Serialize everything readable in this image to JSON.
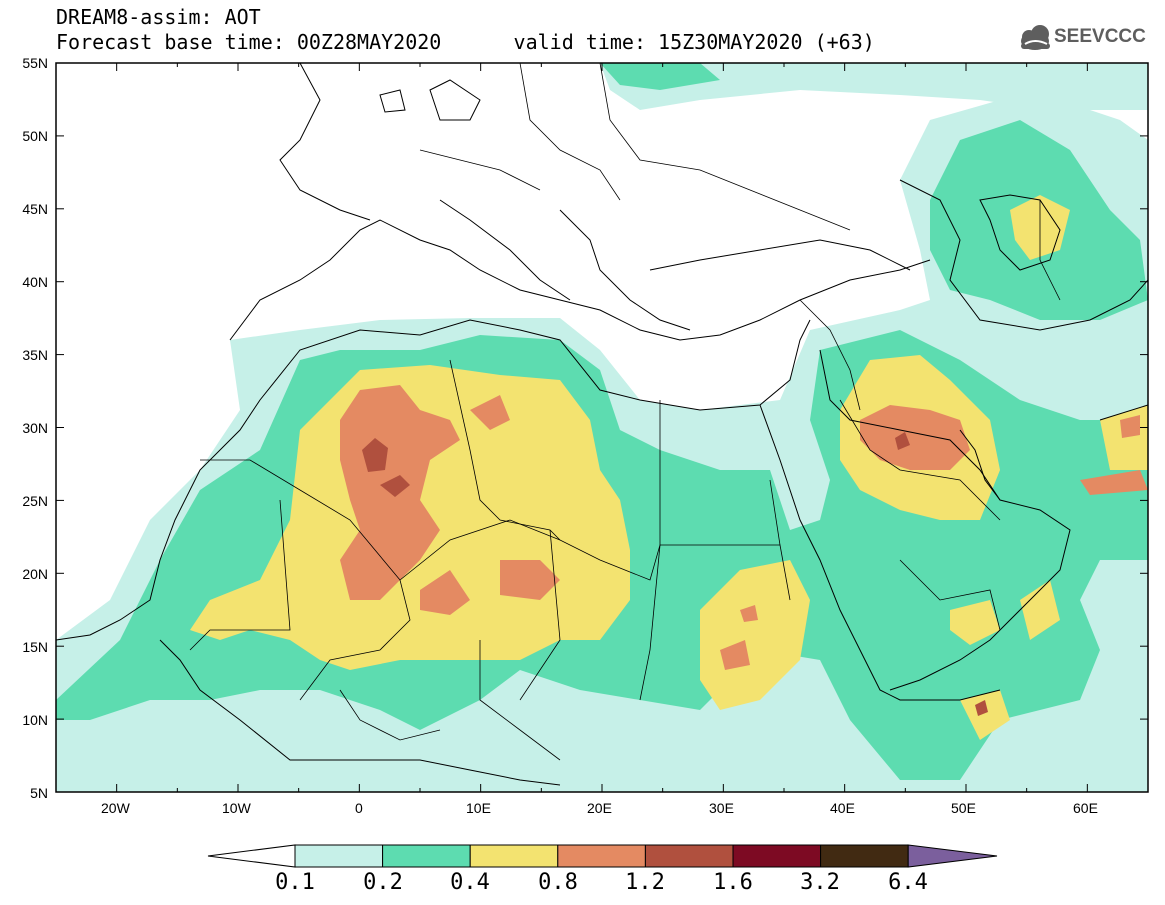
{
  "title": {
    "line1": "DREAM8-assim: AOT",
    "line2": "Forecast base time: 00Z28MAY2020      valid time: 15Z30MAY2020 (+63)"
  },
  "logo": {
    "text": "SEEVCCC",
    "icon": "cloud-icon",
    "color": "#5e5e5e"
  },
  "map": {
    "lat_labels": [
      "55N",
      "50N",
      "45N",
      "40N",
      "35N",
      "30N",
      "25N",
      "20N",
      "15N",
      "10N",
      "5N"
    ],
    "lon_labels": [
      "20W",
      "10W",
      "0",
      "10E",
      "20E",
      "30E",
      "40E",
      "50E",
      "60E"
    ],
    "extent": {
      "lon": [
        -25,
        65
      ],
      "lat": [
        5,
        55
      ]
    }
  },
  "colorbar": {
    "labels": [
      "0.1",
      "0.2",
      "0.4",
      "0.8",
      "1.2",
      "1.6",
      "3.2",
      "6.4"
    ],
    "colors": [
      "#ffffff",
      "#c6f0e8",
      "#5ddcb0",
      "#f3e370",
      "#e48a62",
      "#b0503e",
      "#7d0a23",
      "#412a12",
      "#7b5f9d"
    ]
  }
}
